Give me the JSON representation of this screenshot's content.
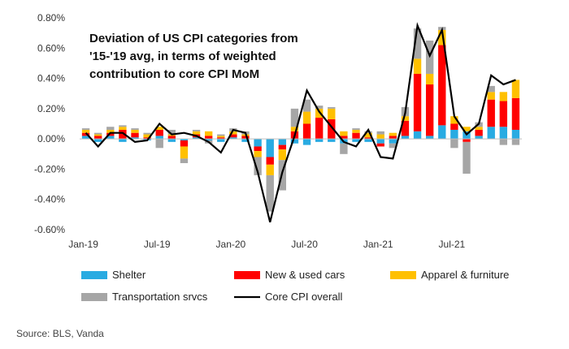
{
  "chart_data": {
    "type": "bar",
    "stacked": true,
    "title_lines": [
      "Deviation of US CPI categories from",
      "'15-'19 avg, in terms of weighted",
      "contribution to core CPI MoM"
    ],
    "ylim": [
      -0.6,
      0.8
    ],
    "yticks": [
      "-0.60%",
      "-0.40%",
      "-0.20%",
      "0.00%",
      "0.20%",
      "0.40%",
      "0.60%",
      "0.80%"
    ],
    "ytick_values": [
      -0.6,
      -0.4,
      -0.2,
      0,
      0.2,
      0.4,
      0.6,
      0.8
    ],
    "x": [
      "Jan-19",
      "Feb-19",
      "Mar-19",
      "Apr-19",
      "May-19",
      "Jun-19",
      "Jul-19",
      "Aug-19",
      "Sep-19",
      "Oct-19",
      "Nov-19",
      "Dec-19",
      "Jan-20",
      "Feb-20",
      "Mar-20",
      "Apr-20",
      "May-20",
      "Jun-20",
      "Jul-20",
      "Aug-20",
      "Sep-20",
      "Oct-20",
      "Nov-20",
      "Dec-20",
      "Jan-21",
      "Feb-21",
      "Mar-21",
      "Apr-21",
      "May-21",
      "Jun-21",
      "Jul-21",
      "Aug-21",
      "Sep-21",
      "Oct-21",
      "Nov-21",
      "Dec-21"
    ],
    "xtick_labels": [
      {
        "label": "Jan-19",
        "index": 0
      },
      {
        "label": "Jul-19",
        "index": 6
      },
      {
        "label": "Jan-20",
        "index": 12
      },
      {
        "label": "Jul-20",
        "index": 18
      },
      {
        "label": "Jan-21",
        "index": 24
      },
      {
        "label": "Jul-21",
        "index": 30
      }
    ],
    "series": [
      {
        "name": "Shelter",
        "color": "#29abe2",
        "values": [
          0.02,
          -0.02,
          0.02,
          -0.02,
          0.01,
          -0.01,
          0.02,
          -0.02,
          -0.01,
          0.01,
          -0.01,
          -0.02,
          0.01,
          -0.02,
          -0.05,
          -0.12,
          -0.04,
          -0.03,
          -0.04,
          -0.02,
          -0.02,
          -0.03,
          -0.02,
          -0.02,
          -0.03,
          -0.03,
          0.02,
          0.05,
          0.02,
          0.09,
          0.06,
          0.05,
          0.02,
          0.08,
          0.08,
          0.06
        ]
      },
      {
        "name": "New & used cars",
        "color": "#ff0000",
        "values": [
          0.02,
          0.02,
          0.02,
          0.06,
          0.03,
          0.01,
          0.04,
          0.02,
          -0.04,
          0.02,
          0.02,
          0.01,
          0.02,
          0.02,
          -0.03,
          -0.05,
          -0.03,
          0.05,
          0.1,
          0.14,
          0.13,
          0.02,
          0.04,
          0.01,
          -0.02,
          0.02,
          0.1,
          0.38,
          0.34,
          0.53,
          0.04,
          -0.02,
          0.04,
          0.18,
          0.17,
          0.21
        ]
      },
      {
        "name": "Apparel & furniture",
        "color": "#ffc000",
        "values": [
          0.02,
          0.01,
          0.02,
          0.02,
          0.02,
          0.02,
          0.02,
          0.01,
          -0.08,
          0.02,
          0.03,
          0.01,
          0.02,
          0.01,
          -0.04,
          -0.07,
          -0.07,
          0.03,
          0.08,
          0.06,
          0.07,
          0.03,
          0.02,
          0.03,
          0.03,
          0.02,
          0.03,
          0.1,
          0.07,
          0.1,
          0.05,
          0.03,
          0.02,
          0.05,
          0.06,
          0.12
        ]
      },
      {
        "name": "Transportation srvcs",
        "color": "#a6a6a6",
        "values": [
          0.01,
          0.01,
          0.02,
          0.01,
          0.01,
          0.01,
          -0.06,
          0.03,
          -0.03,
          0.01,
          -0.02,
          0.01,
          0.02,
          0.02,
          -0.12,
          -0.24,
          -0.2,
          0.12,
          0.08,
          0.02,
          0.01,
          -0.07,
          0.01,
          0.01,
          0.02,
          -0.03,
          0.06,
          0.2,
          0.22,
          0.02,
          -0.06,
          -0.21,
          0.03,
          0.04,
          -0.04,
          -0.04
        ]
      }
    ],
    "line": {
      "name": "Core CPI overall",
      "color": "#000000",
      "values": [
        0.04,
        -0.05,
        0.04,
        0.04,
        -0.02,
        -0.01,
        0.1,
        0.03,
        0.04,
        0.02,
        -0.02,
        -0.09,
        0.06,
        0.04,
        -0.22,
        -0.55,
        -0.22,
        0.02,
        0.32,
        0.18,
        0.08,
        -0.02,
        -0.05,
        0.06,
        -0.12,
        -0.13,
        0.17,
        0.75,
        0.55,
        0.72,
        0.15,
        0.03,
        0.1,
        0.42,
        0.36,
        0.39
      ]
    },
    "legend": [
      {
        "label": "Shelter",
        "color": "#29abe2",
        "kind": "bar"
      },
      {
        "label": "New & used cars",
        "color": "#ff0000",
        "kind": "bar"
      },
      {
        "label": "Apparel & furniture",
        "color": "#ffc000",
        "kind": "bar"
      },
      {
        "label": "Transportation srvcs",
        "color": "#a6a6a6",
        "kind": "bar"
      },
      {
        "label": "Core CPI overall",
        "color": "#000000",
        "kind": "line"
      }
    ],
    "legend_placement": "bottom",
    "grid": false
  },
  "source": "Source: BLS, Vanda"
}
